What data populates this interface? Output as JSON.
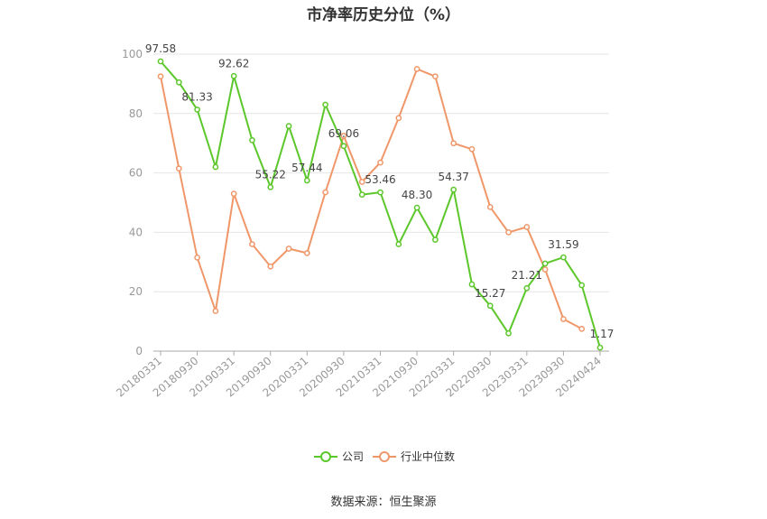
{
  "chart_data": {
    "type": "line",
    "title": "市净率历史分位（%）",
    "source": "数据来源：恒生聚源",
    "ylim": [
      0,
      100
    ],
    "yticks": [
      "0",
      "20",
      "40",
      "60",
      "80",
      "100"
    ],
    "grid": true,
    "legend_position": "bottom-center",
    "x": [
      "20180331",
      "20180630",
      "20180930",
      "20181231",
      "20190331",
      "20190630",
      "20190930",
      "20191231",
      "20200331",
      "20200630",
      "20200930",
      "20201231",
      "20210331",
      "20210630",
      "20210930",
      "20211231",
      "20220331",
      "20220630",
      "20220930",
      "20221231",
      "20230331",
      "20230630",
      "20230930",
      "20231231",
      "20240424"
    ],
    "xtick_labels": [
      "20180331",
      "20180930",
      "20190331",
      "20190930",
      "20200331",
      "20200930",
      "20210331",
      "20210930",
      "20220331",
      "20220930",
      "20230331",
      "20230930",
      "20240424"
    ],
    "series": [
      {
        "name": "公司",
        "color": "#5cc72b",
        "values": [
          97.58,
          90.5,
          81.33,
          62.0,
          92.62,
          71.0,
          55.22,
          75.8,
          57.44,
          83.0,
          69.06,
          52.7,
          53.46,
          36.0,
          48.3,
          37.5,
          54.37,
          22.5,
          15.27,
          6.0,
          21.21,
          29.5,
          31.59,
          22.2,
          1.17
        ],
        "labels": [
          "97.58",
          "",
          "81.33",
          "",
          "92.62",
          "",
          "55.22",
          "",
          "57.44",
          "",
          "69.06",
          "",
          "53.46",
          "",
          "48.30",
          "",
          "54.37",
          "",
          "15.27",
          "",
          "21.21",
          "",
          "31.59",
          "",
          "1.17"
        ]
      },
      {
        "name": "行业中位数",
        "color": "#f0976a",
        "values": [
          92.5,
          61.5,
          31.5,
          13.5,
          53.0,
          36.0,
          28.5,
          34.5,
          33.0,
          53.5,
          72.5,
          57.0,
          63.5,
          78.5,
          95.0,
          92.5,
          70.0,
          68.0,
          48.5,
          40.0,
          41.8,
          27.5,
          10.8,
          7.5,
          null
        ]
      }
    ]
  }
}
